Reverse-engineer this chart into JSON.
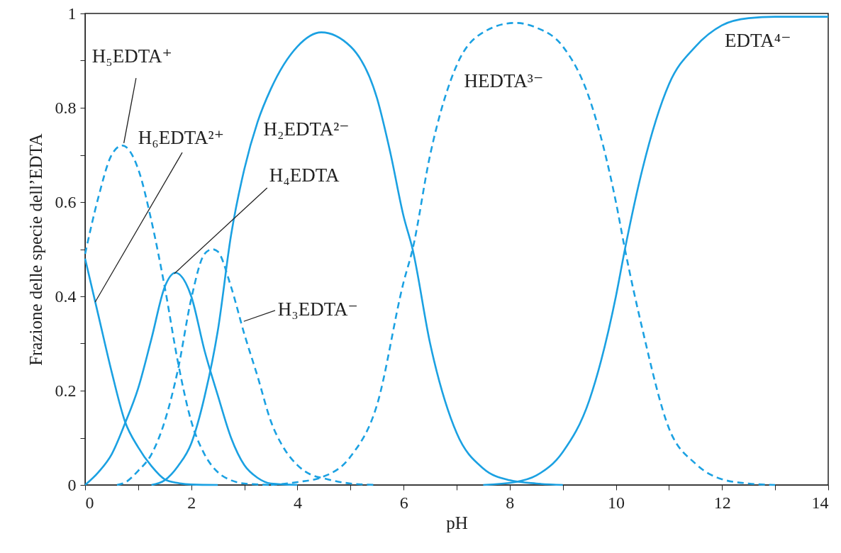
{
  "chart_data": {
    "type": "line",
    "xlabel": "pH",
    "ylabel": "Frazione delle specie dell’EDTA",
    "xlim": [
      0,
      14
    ],
    "xticks": [
      0,
      {
        "value": 1,
        "label": null
      },
      2,
      {
        "value": 3,
        "label": null
      },
      4,
      {
        "value": 5,
        "label": null
      },
      6,
      {
        "value": 7,
        "label": null
      },
      8,
      {
        "value": 9,
        "label": null
      },
      10,
      {
        "value": 11,
        "label": null
      },
      12,
      {
        "value": 13,
        "label": null
      },
      14
    ],
    "ylim": [
      0,
      1
    ],
    "yticks": [
      0,
      {
        "value": 0.1,
        "label": null
      },
      0.2,
      {
        "value": 0.3,
        "label": null
      },
      0.4,
      {
        "value": 0.5,
        "label": null
      },
      0.6,
      {
        "value": 0.7,
        "label": null
      },
      0.8,
      {
        "value": 0.9,
        "label": null
      },
      1
    ],
    "grid": false,
    "marker": "none",
    "series": [
      {
        "name": "H₆EDTA²⁺",
        "color": "#1ba1e2",
        "line_style": "solid",
        "x": [
          0,
          0.25,
          0.5,
          0.75,
          1,
          1.25,
          1.5,
          1.75,
          2,
          2.5
        ],
        "values": [
          0.48,
          0.36,
          0.24,
          0.135,
          0.08,
          0.04,
          0.012,
          0.004,
          0.001,
          0
        ]
      },
      {
        "name": "H₅EDTA⁺",
        "color": "#1ba1e2",
        "line_style": "dashed",
        "x": [
          0,
          0.25,
          0.5,
          0.7,
          1,
          1.25,
          1.5,
          1.75,
          2,
          2.25,
          2.5,
          2.75,
          3,
          3.5
        ],
        "values": [
          0.49,
          0.61,
          0.7,
          0.72,
          0.67,
          0.56,
          0.42,
          0.26,
          0.135,
          0.065,
          0.027,
          0.01,
          0.003,
          0
        ]
      },
      {
        "name": "H₄EDTA",
        "color": "#1ba1e2",
        "line_style": "solid",
        "x": [
          0,
          0.25,
          0.5,
          0.75,
          1,
          1.25,
          1.5,
          1.7,
          2,
          2.25,
          2.5,
          2.75,
          3,
          3.25,
          3.5,
          4
        ],
        "values": [
          0,
          0.027,
          0.065,
          0.13,
          0.205,
          0.31,
          0.42,
          0.45,
          0.4,
          0.285,
          0.19,
          0.1,
          0.042,
          0.015,
          0.003,
          0
        ]
      },
      {
        "name": "H₃EDTA⁻",
        "color": "#1ba1e2",
        "line_style": "dashed",
        "x": [
          0.6,
          0.75,
          1,
          1.25,
          1.5,
          1.75,
          2,
          2.25,
          2.4,
          2.5,
          2.75,
          3,
          3.25,
          3.5,
          3.75,
          4,
          4.25,
          4.5,
          5,
          5.5
        ],
        "values": [
          0,
          0.005,
          0.03,
          0.065,
          0.135,
          0.245,
          0.395,
          0.49,
          0.5,
          0.495,
          0.42,
          0.32,
          0.23,
          0.135,
          0.077,
          0.042,
          0.022,
          0.014,
          0.003,
          0
        ]
      },
      {
        "name": "H₂EDTA²⁻",
        "color": "#1ba1e2",
        "line_style": "solid",
        "x": [
          1.25,
          1.5,
          1.75,
          2,
          2.25,
          2.5,
          2.75,
          3,
          3.25,
          3.5,
          4,
          4.45,
          5,
          5.5,
          5.75,
          6,
          6.17,
          6.5,
          7,
          7.5,
          8,
          8.5,
          9
        ],
        "values": [
          0,
          0.01,
          0.04,
          0.088,
          0.187,
          0.327,
          0.53,
          0.67,
          0.77,
          0.84,
          0.93,
          0.96,
          0.93,
          0.82,
          0.705,
          0.57,
          0.5,
          0.3,
          0.11,
          0.035,
          0.01,
          0.003,
          0
        ]
      },
      {
        "name": "HEDTA³⁻",
        "color": "#1ba1e2",
        "line_style": "dashed",
        "x": [
          3.5,
          4,
          4.45,
          5,
          5.5,
          6,
          6.17,
          6.5,
          7,
          7.5,
          8.1,
          8.5,
          9,
          9.5,
          10,
          10.17,
          10.5,
          11,
          11.5,
          12,
          12.5,
          13
        ],
        "values": [
          0,
          0.006,
          0.016,
          0.06,
          0.17,
          0.43,
          0.5,
          0.7,
          0.89,
          0.96,
          0.98,
          0.97,
          0.93,
          0.82,
          0.6,
          0.5,
          0.33,
          0.12,
          0.045,
          0.012,
          0.003,
          0
        ]
      },
      {
        "name": "EDTA⁴⁻",
        "color": "#1ba1e2",
        "line_style": "solid",
        "x": [
          7.5,
          8.1,
          8.5,
          9,
          9.5,
          10,
          10.17,
          10.5,
          11,
          11.5,
          12,
          12.5,
          13,
          14
        ],
        "values": [
          0,
          0.006,
          0.02,
          0.07,
          0.18,
          0.4,
          0.5,
          0.67,
          0.85,
          0.93,
          0.975,
          0.99,
          0.993,
          0.993
        ]
      }
    ]
  }
}
